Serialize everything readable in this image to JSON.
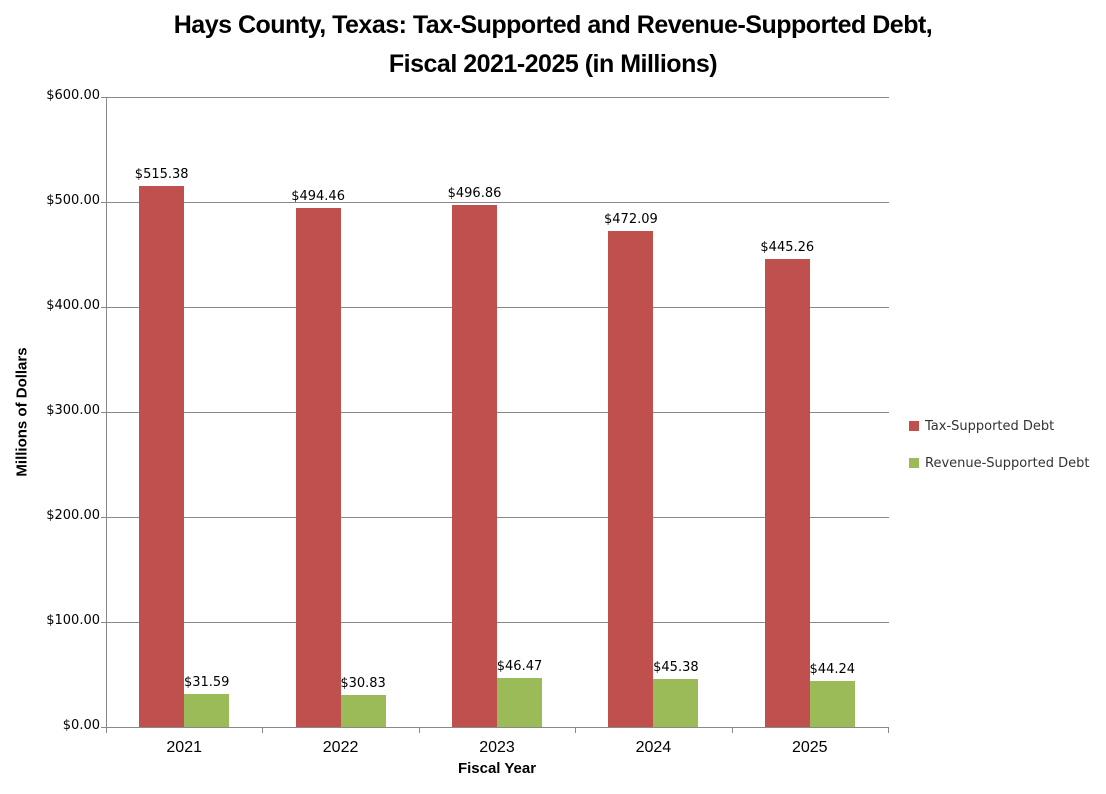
{
  "page": {
    "background": "#FFFFFF"
  },
  "chart_data": {
    "type": "bar",
    "title_line1": "Hays County, Texas: Tax-Supported and Revenue-Supported Debt,",
    "title_line2": "Fiscal 2021-2025 (in Millions)",
    "xlabel": "Fiscal Year",
    "ylabel": "Millions of Dollars",
    "categories": [
      "2021",
      "2022",
      "2023",
      "2024",
      "2025"
    ],
    "series": [
      {
        "name": "Tax-Supported Debt",
        "color": "#C0504D",
        "values": [
          515.38,
          494.46,
          496.86,
          472.09,
          445.26
        ],
        "labels": [
          "$515.38",
          "$494.46",
          "$496.86",
          "$472.09",
          "$445.26"
        ]
      },
      {
        "name": "Revenue-Supported Debt",
        "color": "#9BBB59",
        "values": [
          31.59,
          30.83,
          46.47,
          45.38,
          44.24
        ],
        "labels": [
          "$31.59",
          "$30.83",
          "$46.47",
          "$45.38",
          "$44.24"
        ]
      }
    ],
    "ylim": [
      0,
      600
    ],
    "y_ticks": [
      {
        "value": 600,
        "label": "$600.00"
      },
      {
        "value": 500,
        "label": "$500.00"
      },
      {
        "value": 400,
        "label": "$400.00"
      },
      {
        "value": 300,
        "label": "$300.00"
      },
      {
        "value": 200,
        "label": "$200.00"
      },
      {
        "value": 100,
        "label": "$100.00"
      },
      {
        "value": 0,
        "label": "$0.00"
      }
    ],
    "grid": true,
    "legend_position": "right",
    "colors": {
      "gridline": "#898989",
      "axis": "#898989",
      "text": "#000000",
      "legend_text": "#333333"
    }
  }
}
